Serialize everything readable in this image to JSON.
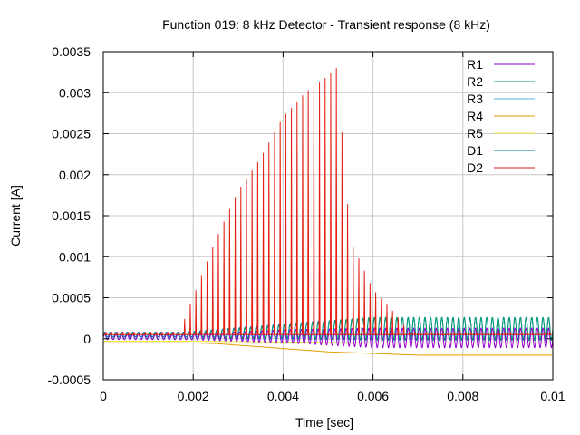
{
  "chart_data": {
    "type": "line",
    "title": "Function 019: 8 kHz Detector - Transient response (8 kHz)",
    "xlabel": "Time [sec]",
    "ylabel": "Current [A]",
    "xlim": [
      0,
      0.01
    ],
    "ylim": [
      -0.0005,
      0.0035
    ],
    "x_ticks": [
      0,
      0.002,
      0.004,
      0.006,
      0.008,
      0.01
    ],
    "x_tick_labels": [
      "0",
      "0.002",
      "0.004",
      "0.006",
      "0.008",
      "0.01"
    ],
    "y_ticks": [
      -0.0005,
      0,
      0.0005,
      0.001,
      0.0015,
      0.002,
      0.0025,
      0.003,
      0.0035
    ],
    "y_tick_labels": [
      "-0.0005",
      "0",
      "0.0005",
      "0.001",
      "0.0015",
      "0.002",
      "0.0025",
      "0.003",
      "0.0035"
    ],
    "grid": true,
    "legend_position": "top-right",
    "signal_frequency_hz": 8000,
    "series": [
      {
        "name": "R1",
        "color": "#9400d3",
        "shape": "oscillation",
        "description": "oscillation about 0, amplitude growing to about 0.00012 after 0.006 s",
        "envelope_x": [
          0,
          0.0018,
          0.004,
          0.006,
          0.01
        ],
        "envelope_mid": [
          2e-05,
          2e-05,
          3e-05,
          1e-05,
          1e-05
        ],
        "envelope_amp": [
          3e-05,
          3e-05,
          8e-05,
          0.00012,
          0.00012
        ]
      },
      {
        "name": "R2",
        "color": "#009e73",
        "shape": "oscillation",
        "description": "oscillation rising to about 0.00027 peaks after 0.006 s",
        "envelope_x": [
          0,
          0.0018,
          0.004,
          0.006,
          0.01
        ],
        "envelope_mid": [
          3e-05,
          3e-05,
          8e-05,
          0.00012,
          0.00012
        ],
        "envelope_amp": [
          4e-05,
          4e-05,
          8e-05,
          0.00014,
          0.00014
        ]
      },
      {
        "name": "R3",
        "color": "#56b4e9",
        "shape": "oscillation",
        "description": "small oscillation near 0",
        "envelope_x": [
          0,
          0.01
        ],
        "envelope_mid": [
          2e-05,
          2e-05
        ],
        "envelope_amp": [
          3e-05,
          4e-05
        ]
      },
      {
        "name": "R4",
        "color": "#e69f00",
        "shape": "smooth",
        "description": "slow drift from about -0.00005 down to about -0.0002",
        "x": [
          0,
          0.0018,
          0.0025,
          0.003,
          0.0035,
          0.004,
          0.0045,
          0.005,
          0.0055,
          0.006,
          0.0065,
          0.007,
          0.008,
          0.01
        ],
        "y": [
          -5e-05,
          -5e-05,
          -6e-05,
          -8e-05,
          -0.0001,
          -0.00012,
          -0.00014,
          -0.00016,
          -0.00017,
          -0.00018,
          -0.00019,
          -0.0002,
          -0.0002,
          -0.0002
        ]
      },
      {
        "name": "R5",
        "color": "#f0e442",
        "shape": "smooth",
        "description": "near-flat trace just below 0",
        "x": [
          0,
          0.002,
          0.004,
          0.006,
          0.008,
          0.01
        ],
        "y": [
          -3e-05,
          -3e-05,
          -4e-05,
          -5e-05,
          -5e-05,
          -5e-05
        ]
      },
      {
        "name": "D1",
        "color": "#0072b2",
        "shape": "oscillation",
        "description": "oscillation rising to about 0.00027 peaks after 0.0045 s",
        "envelope_x": [
          0,
          0.0018,
          0.0045,
          0.006,
          0.01
        ],
        "envelope_mid": [
          5e-05,
          5e-05,
          0.0001,
          0.00012,
          0.00012
        ],
        "envelope_amp": [
          3e-05,
          3e-05,
          0.0001,
          0.00014,
          0.00014
        ]
      },
      {
        "name": "D2",
        "color": "#e51e10",
        "shape": "spikes",
        "description": "rectified pulses at 8 kHz; peak envelope ramps from 0 at 0.0017 s to about 0.0033 at 0.0052 s then collapses by 0.0068 s",
        "baseline": 5e-05,
        "envelope_x": [
          0,
          0.0017,
          0.002,
          0.0025,
          0.003,
          0.0035,
          0.004,
          0.0045,
          0.005,
          0.0052,
          0.0055,
          0.006,
          0.0065,
          0.0068,
          0.01
        ],
        "envelope_peak": [
          8e-05,
          8e-05,
          0.0005,
          0.0012,
          0.0018,
          0.0022,
          0.0027,
          0.003,
          0.0032,
          0.0033,
          0.0012,
          0.0006,
          0.0003,
          8e-05,
          8e-05
        ]
      }
    ]
  }
}
